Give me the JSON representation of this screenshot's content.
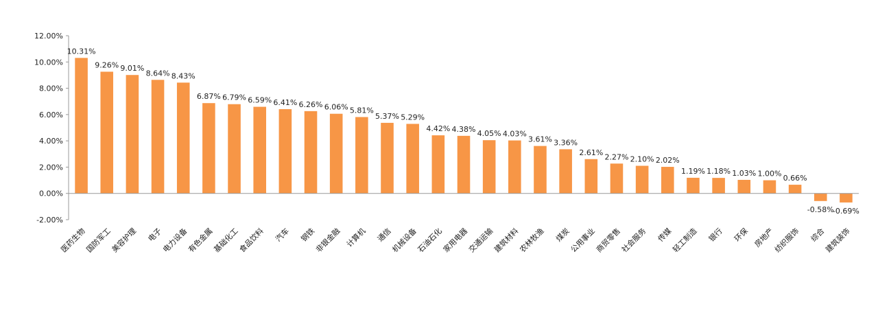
{
  "chart_data": {
    "type": "bar",
    "bar_color": "#F79646",
    "axis_color": "#999999",
    "y_ticks": [
      "12.00%",
      "10.00%",
      "8.00%",
      "6.00%",
      "4.00%",
      "2.00%",
      "0.00%",
      "-2.00%"
    ],
    "ylim": [
      -2,
      12
    ],
    "grid": false,
    "categories": [
      "医药生物",
      "国防军工",
      "美容护理",
      "电子",
      "电力设备",
      "有色金属",
      "基础化工",
      "食品饮料",
      "汽车",
      "钢铁",
      "非银金融",
      "计算机",
      "通信",
      "机械设备",
      "石油石化",
      "家用电器",
      "交通运输",
      "建筑材料",
      "农林牧渔",
      "煤炭",
      "公用事业",
      "商贸零售",
      "社会服务",
      "传媒",
      "轻工制造",
      "银行",
      "环保",
      "房地产",
      "纺织服饰",
      "综合",
      "建筑装饰"
    ],
    "values": [
      10.31,
      9.26,
      9.01,
      8.64,
      8.43,
      6.87,
      6.79,
      6.59,
      6.41,
      6.26,
      6.06,
      5.81,
      5.37,
      5.29,
      4.42,
      4.38,
      4.05,
      4.03,
      3.61,
      3.36,
      2.61,
      2.27,
      2.1,
      2.02,
      1.19,
      1.18,
      1.03,
      1.0,
      0.66,
      -0.58,
      -0.69
    ],
    "data_labels": [
      "10.31%",
      "9.26%",
      "9.01%",
      "8.64%",
      "8.43%",
      "6.87%",
      "6.79%",
      "6.59%",
      "6.41%",
      "6.26%",
      "6.06%",
      "5.81%",
      "5.37%",
      "5.29%",
      "4.42%",
      "4.38%",
      "4.05%",
      "4.03%",
      "3.61%",
      "3.36%",
      "2.61%",
      "2.27%",
      "2.10%",
      "2.02%",
      "1.19%",
      "1.18%",
      "1.03%",
      "1.00%",
      "0.66%",
      "-0.58%",
      "-0.69%"
    ]
  }
}
